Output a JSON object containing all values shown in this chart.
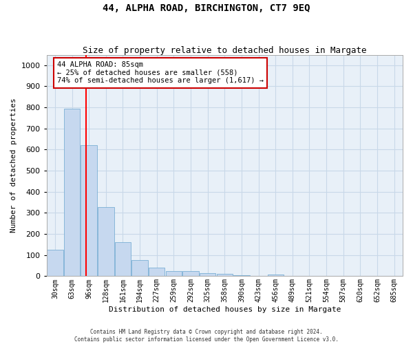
{
  "title": "44, ALPHA ROAD, BIRCHINGTON, CT7 9EQ",
  "subtitle": "Size of property relative to detached houses in Margate",
  "xlabel": "Distribution of detached houses by size in Margate",
  "ylabel": "Number of detached properties",
  "categories": [
    "30sqm",
    "63sqm",
    "96sqm",
    "128sqm",
    "161sqm",
    "194sqm",
    "227sqm",
    "259sqm",
    "292sqm",
    "325sqm",
    "358sqm",
    "390sqm",
    "423sqm",
    "456sqm",
    "489sqm",
    "521sqm",
    "554sqm",
    "587sqm",
    "620sqm",
    "652sqm",
    "685sqm"
  ],
  "values": [
    125,
    795,
    620,
    328,
    162,
    78,
    40,
    25,
    25,
    15,
    10,
    5,
    0,
    8,
    0,
    0,
    0,
    0,
    0,
    0,
    0
  ],
  "bar_color": "#c6d8ef",
  "bar_edge_color": "#7aafd4",
  "red_line_x": 1.83,
  "annotation_title": "44 ALPHA ROAD: 85sqm",
  "annotation_line1": "← 25% of detached houses are smaller (558)",
  "annotation_line2": "74% of semi-detached houses are larger (1,617) →",
  "annotation_box_color": "#ffffff",
  "annotation_box_edge": "#cc0000",
  "footer_line1": "Contains HM Land Registry data © Crown copyright and database right 2024.",
  "footer_line2": "Contains public sector information licensed under the Open Government Licence v3.0.",
  "bg_color": "#ffffff",
  "grid_color": "#c8d8e8",
  "plot_bg_color": "#e8f0f8",
  "ylim": [
    0,
    1050
  ],
  "yticks": [
    0,
    100,
    200,
    300,
    400,
    500,
    600,
    700,
    800,
    900,
    1000
  ],
  "title_fontsize": 10,
  "subtitle_fontsize": 9,
  "ylabel_fontsize": 8,
  "xlabel_fontsize": 8,
  "tick_fontsize": 7,
  "annot_fontsize": 7.5,
  "footer_fontsize": 5.5
}
